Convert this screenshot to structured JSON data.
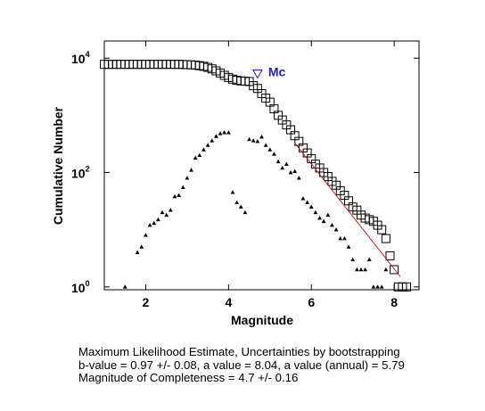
{
  "chart_data": {
    "type": "scatter",
    "xlabel": "Magnitude",
    "ylabel": "Cumulative Number",
    "xlim": [
      1.0,
      8.6
    ],
    "ylim_log10": [
      -0.05,
      4.3
    ],
    "y_scale": "log",
    "x_ticks": [
      2,
      4,
      6,
      8
    ],
    "y_ticks": [
      {
        "base": "10",
        "exp": "0",
        "value": 1
      },
      {
        "base": "10",
        "exp": "2",
        "value": 100
      },
      {
        "base": "10",
        "exp": "4",
        "value": 10000
      }
    ],
    "grid": false,
    "cumulative": [
      [
        1.0,
        7800
      ],
      [
        1.1,
        7800
      ],
      [
        1.2,
        7800
      ],
      [
        1.3,
        7800
      ],
      [
        1.4,
        7800
      ],
      [
        1.5,
        7800
      ],
      [
        1.6,
        7800
      ],
      [
        1.7,
        7800
      ],
      [
        1.8,
        7800
      ],
      [
        1.9,
        7800
      ],
      [
        2.0,
        7800
      ],
      [
        2.1,
        7800
      ],
      [
        2.2,
        7800
      ],
      [
        2.3,
        7800
      ],
      [
        2.4,
        7800
      ],
      [
        2.5,
        7800
      ],
      [
        2.6,
        7800
      ],
      [
        2.7,
        7800
      ],
      [
        2.8,
        7800
      ],
      [
        2.9,
        7750
      ],
      [
        3.0,
        7700
      ],
      [
        3.1,
        7650
      ],
      [
        3.2,
        7550
      ],
      [
        3.3,
        7400
      ],
      [
        3.4,
        7200
      ],
      [
        3.5,
        6900
      ],
      [
        3.6,
        6500
      ],
      [
        3.7,
        6000
      ],
      [
        3.8,
        5500
      ],
      [
        3.9,
        5000
      ],
      [
        4.0,
        4600
      ],
      [
        4.1,
        4300
      ],
      [
        4.2,
        4100
      ],
      [
        4.3,
        4000
      ],
      [
        4.4,
        3950
      ],
      [
        4.5,
        3900
      ],
      [
        4.6,
        3300
      ],
      [
        4.7,
        2950
      ],
      [
        4.8,
        2400
      ],
      [
        4.9,
        2000
      ],
      [
        5.0,
        1700
      ],
      [
        5.1,
        1300
      ],
      [
        5.2,
        1000
      ],
      [
        5.3,
        830
      ],
      [
        5.4,
        680
      ],
      [
        5.5,
        560
      ],
      [
        5.6,
        440
      ],
      [
        5.7,
        350
      ],
      [
        5.8,
        270
      ],
      [
        5.9,
        220
      ],
      [
        6.0,
        175
      ],
      [
        6.1,
        140
      ],
      [
        6.2,
        120
      ],
      [
        6.3,
        100
      ],
      [
        6.4,
        85
      ],
      [
        6.5,
        70
      ],
      [
        6.6,
        60
      ],
      [
        6.7,
        48
      ],
      [
        6.8,
        40
      ],
      [
        6.9,
        32
      ],
      [
        7.0,
        25
      ],
      [
        7.1,
        22
      ],
      [
        7.2,
        18
      ],
      [
        7.3,
        16
      ],
      [
        7.4,
        15
      ],
      [
        7.5,
        14
      ],
      [
        7.6,
        12
      ],
      [
        7.7,
        10
      ],
      [
        7.8,
        7
      ],
      [
        7.9,
        3.5
      ],
      [
        8.0,
        2
      ],
      [
        8.1,
        1
      ],
      [
        8.2,
        1
      ],
      [
        8.3,
        1
      ]
    ],
    "noncumulative": [
      [
        1.5,
        1
      ],
      [
        1.8,
        4
      ],
      [
        1.9,
        5
      ],
      [
        2.0,
        8
      ],
      [
        2.1,
        12
      ],
      [
        2.2,
        13
      ],
      [
        2.3,
        15
      ],
      [
        2.4,
        20
      ],
      [
        2.5,
        18
      ],
      [
        2.6,
        22
      ],
      [
        2.7,
        38
      ],
      [
        2.8,
        40
      ],
      [
        2.9,
        55
      ],
      [
        3.0,
        80
      ],
      [
        3.1,
        110
      ],
      [
        3.2,
        180
      ],
      [
        3.3,
        200
      ],
      [
        3.4,
        250
      ],
      [
        3.5,
        300
      ],
      [
        3.6,
        360
      ],
      [
        3.7,
        430
      ],
      [
        3.8,
        480
      ],
      [
        3.9,
        500
      ],
      [
        4.0,
        500
      ],
      [
        4.1,
        45
      ],
      [
        4.2,
        30
      ],
      [
        4.3,
        25
      ],
      [
        4.4,
        20
      ],
      [
        4.5,
        380
      ],
      [
        4.6,
        360
      ],
      [
        4.7,
        350
      ],
      [
        4.8,
        420
      ],
      [
        4.9,
        300
      ],
      [
        5.0,
        250
      ],
      [
        5.1,
        210
      ],
      [
        5.2,
        155
      ],
      [
        5.3,
        120
      ],
      [
        5.4,
        140
      ],
      [
        5.5,
        100
      ],
      [
        5.6,
        105
      ],
      [
        5.7,
        80
      ],
      [
        5.8,
        35
      ],
      [
        5.9,
        30
      ],
      [
        6.0,
        25
      ],
      [
        6.1,
        20
      ],
      [
        6.2,
        16
      ],
      [
        6.3,
        14
      ],
      [
        6.4,
        18
      ],
      [
        6.5,
        12
      ],
      [
        6.6,
        10
      ],
      [
        6.7,
        7
      ],
      [
        6.8,
        7
      ],
      [
        6.9,
        5
      ],
      [
        7.0,
        3
      ],
      [
        7.1,
        2
      ],
      [
        7.2,
        2
      ],
      [
        7.3,
        2
      ],
      [
        7.4,
        3
      ],
      [
        7.5,
        1
      ],
      [
        7.6,
        1
      ],
      [
        7.7,
        1
      ],
      [
        7.8,
        2
      ]
    ],
    "fit_line": {
      "from": [
        5.6,
        330
      ],
      "to": [
        8.15,
        1.5
      ]
    },
    "mc": {
      "label": "Mc",
      "x": 4.7,
      "y": 5200
    }
  },
  "caption": {
    "line1": "Maximum Likelihood Estimate, Uncertainties by bootstrapping",
    "line2": "b-value = 0.97 +/- 0.08,  a value = 8.04,  a value (annual) = 5.79",
    "line3": "Magnitude of Completeness = 4.7 +/- 0.16"
  },
  "colors": {
    "mc": "#1f1fb8",
    "fit": "#c81e1e",
    "axis": "#000000"
  }
}
